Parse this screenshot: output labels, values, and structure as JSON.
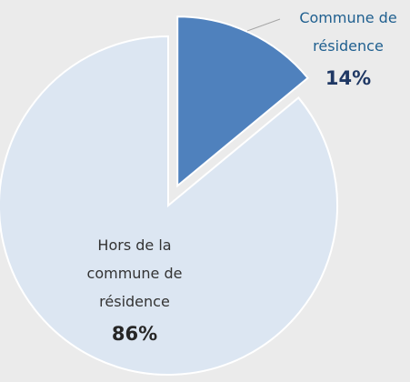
{
  "chart_data": {
    "type": "pie",
    "categories": [
      "Commune de résidence",
      "Hors de la commune de résidence"
    ],
    "values": [
      14,
      86
    ],
    "value_labels": [
      "14%",
      "86%"
    ],
    "colors": [
      "#4f81bd",
      "#dce6f2"
    ],
    "exploded": [
      true,
      false
    ]
  }
}
